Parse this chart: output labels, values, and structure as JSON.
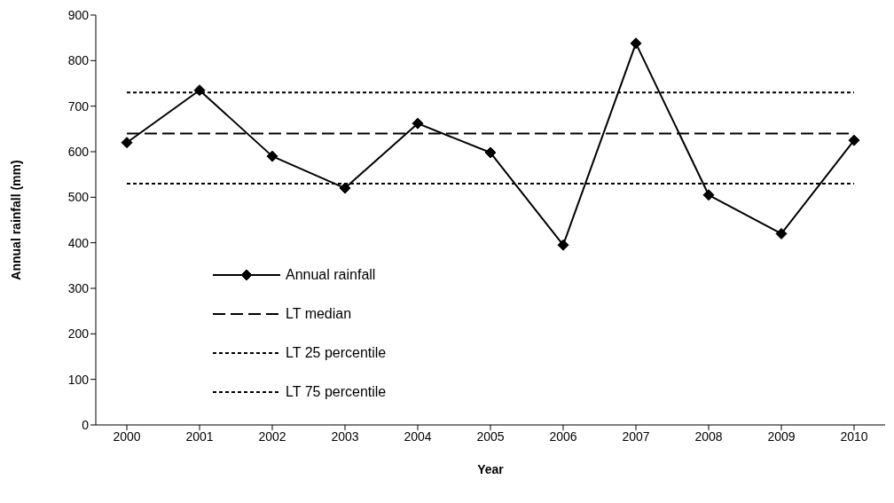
{
  "chart_data": {
    "type": "line",
    "xlabel": "Year",
    "ylabel": "Annual rainfall (mm)",
    "categories": [
      "2000",
      "2001",
      "2002",
      "2003",
      "2004",
      "2005",
      "2006",
      "2007",
      "2008",
      "2009",
      "2010"
    ],
    "series": [
      {
        "name": "Annual rainfall",
        "color": "#000000",
        "values": [
          620,
          735,
          590,
          520,
          662,
          598,
          395,
          838,
          505,
          420,
          625
        ]
      }
    ],
    "ref_lines": [
      {
        "axis": "y",
        "value": 640,
        "label": "LT median",
        "line_style": "dashed",
        "color": "#000000"
      },
      {
        "axis": "y",
        "value": 530,
        "label": "LT 25 percentile",
        "line_style": "dotted",
        "color": "#000000"
      },
      {
        "axis": "y",
        "value": 730,
        "label": "LT 75 percentile",
        "line_style": "dotted",
        "color": "#000000"
      }
    ],
    "ylim": [
      0,
      900
    ],
    "yticks": [
      0,
      100,
      200,
      300,
      400,
      500,
      600,
      700,
      800,
      900
    ],
    "legend": "left",
    "marker": "diamond",
    "line_style": "solid"
  }
}
